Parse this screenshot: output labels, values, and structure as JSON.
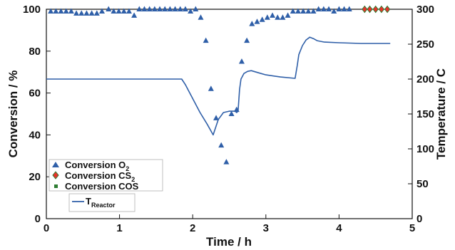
{
  "chart_data": {
    "type": "line",
    "xlabel": "Time / h",
    "ylabel": "Conversion / %",
    "y2label": "Temperature / C",
    "xlim": [
      0,
      5
    ],
    "ylim": [
      0,
      100
    ],
    "y2lim": [
      0,
      300
    ],
    "xticks": [
      "0",
      "1",
      "2",
      "3",
      "4",
      "5"
    ],
    "yticks": [
      "0",
      "20",
      "40",
      "60",
      "80",
      "100"
    ],
    "y2ticks": [
      "0",
      "50",
      "100",
      "150",
      "200",
      "250",
      "300"
    ],
    "grid": false,
    "legend_position": "bottom-left",
    "colors": {
      "o2": "#2f5fa8",
      "cs2": "#e8322b",
      "cs2_edge": "#2e7d32",
      "cos": "#2e7d32",
      "reactor": "#2f5fa8"
    },
    "legend": {
      "o2": {
        "main": "Conversion O",
        "sub": "2"
      },
      "cs2": {
        "main": "Conversion CS",
        "sub": "2"
      },
      "cos": {
        "main": "Conversion COS",
        "sub": ""
      },
      "reactor": {
        "main": "T",
        "sub": "Reactor"
      }
    },
    "series": [
      {
        "key": "o2",
        "marker": "triangle",
        "axis": "left",
        "x": [
          0.06,
          0.13,
          0.2,
          0.27,
          0.34,
          0.41,
          0.48,
          0.55,
          0.62,
          0.69,
          0.76,
          0.85,
          0.92,
          0.99,
          1.06,
          1.13,
          1.2,
          1.27,
          1.34,
          1.41,
          1.48,
          1.55,
          1.62,
          1.69,
          1.76,
          1.83,
          1.9,
          1.97,
          2.04,
          2.11,
          2.18,
          2.25,
          2.32,
          2.39,
          2.46,
          2.53,
          2.6,
          2.67,
          2.74,
          2.81,
          2.88,
          2.95,
          3.02,
          3.09,
          3.16,
          3.23,
          3.3,
          3.37,
          3.44,
          3.51,
          3.58,
          3.65,
          3.72,
          3.79,
          3.86,
          3.93,
          4.0,
          4.07,
          4.14
        ],
        "y": [
          99,
          99,
          99,
          99,
          99,
          98,
          98,
          98,
          98,
          98,
          99,
          100,
          99,
          99,
          99,
          99,
          97,
          100,
          100,
          100,
          100,
          100,
          100,
          100,
          100,
          100,
          100,
          99,
          100,
          96,
          85,
          62,
          48,
          35,
          27,
          50,
          52,
          75,
          85,
          93,
          94,
          95,
          96,
          97,
          96,
          96,
          97,
          99,
          99,
          99,
          99,
          99,
          100,
          100,
          100,
          99,
          100,
          100,
          100
        ]
      },
      {
        "key": "cs2",
        "marker": "diamond",
        "axis": "left",
        "x": [
          4.35,
          4.42,
          4.5,
          4.58,
          4.66
        ],
        "y": [
          100,
          100,
          100,
          100,
          100
        ]
      },
      {
        "key": "reactor",
        "marker": "line",
        "axis": "right",
        "x": [
          0.0,
          0.5,
          1.0,
          1.5,
          1.85,
          1.9,
          2.0,
          2.1,
          2.2,
          2.28,
          2.35,
          2.42,
          2.5,
          2.58,
          2.6,
          2.62,
          2.64,
          2.66,
          2.7,
          2.75,
          2.8,
          2.9,
          3.0,
          3.2,
          3.4,
          3.43,
          3.45,
          3.5,
          3.55,
          3.6,
          3.65,
          3.7,
          3.8,
          4.0,
          4.3,
          4.7
        ],
        "y": [
          200,
          200,
          200,
          200,
          200,
          192,
          172,
          152,
          135,
          120,
          142,
          152,
          154,
          154,
          152,
          154,
          185,
          200,
          208,
          211,
          212,
          209,
          206,
          203,
          201,
          220,
          235,
          248,
          256,
          260,
          258,
          255,
          253,
          252,
          251,
          251
        ]
      }
    ]
  }
}
